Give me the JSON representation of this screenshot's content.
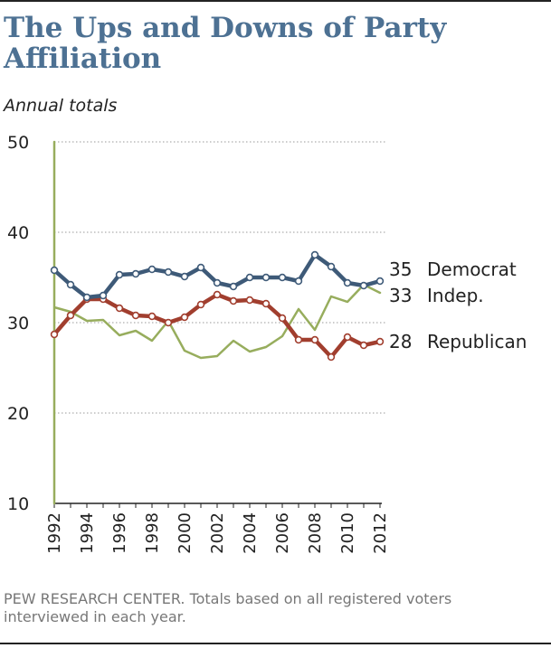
{
  "header": {
    "title": "The Ups and Downs of Party Affiliation",
    "subtitle": "Annual totals"
  },
  "footer": {
    "note": "PEW RESEARCH CENTER. Totals based on all registered voters interviewed in each year."
  },
  "colors": {
    "title": "#4d7193",
    "democrat": "#3e5a78",
    "independent": "#97ad5d",
    "republican": "#a13e2e",
    "grid": "#9a9a9a",
    "footer": "#777777"
  },
  "chart_data": {
    "type": "line",
    "title": "The Ups and Downs of Party Affiliation",
    "subtitle": "Annual totals",
    "xlabel": "",
    "ylabel": "",
    "ylim": [
      10,
      50
    ],
    "yticks": [
      10,
      20,
      30,
      40,
      50
    ],
    "xticks": [
      1992,
      1994,
      1996,
      1998,
      2000,
      2002,
      2004,
      2006,
      2008,
      2010,
      2012
    ],
    "grid": true,
    "x": [
      1992,
      1993,
      1994,
      1995,
      1996,
      1997,
      1998,
      1999,
      2000,
      2001,
      2002,
      2003,
      2004,
      2005,
      2006,
      2007,
      2008,
      2009,
      2010,
      2011,
      2012
    ],
    "series": [
      {
        "name": "Democrat",
        "end_label": "35",
        "color": "#3e5a78",
        "markers": true,
        "values": [
          35.8,
          34.2,
          32.8,
          33.0,
          35.3,
          35.4,
          35.9,
          35.6,
          35.1,
          36.1,
          34.4,
          34.0,
          35.0,
          35.0,
          35.0,
          34.6,
          37.5,
          36.2,
          34.4,
          34.1,
          34.6
        ]
      },
      {
        "name": "Indep.",
        "end_label": "33",
        "color": "#97ad5d",
        "markers": false,
        "values": [
          31.7,
          31.2,
          30.2,
          30.3,
          28.6,
          29.1,
          28.0,
          30.2,
          26.9,
          26.1,
          26.3,
          28.0,
          26.8,
          27.3,
          28.5,
          31.5,
          29.2,
          32.9,
          32.3,
          34.2,
          33.3
        ]
      },
      {
        "name": "Republican",
        "end_label": "28",
        "color": "#a13e2e",
        "markers": true,
        "values": [
          28.7,
          30.8,
          32.6,
          32.6,
          31.6,
          30.8,
          30.7,
          30.0,
          30.6,
          32.0,
          33.1,
          32.4,
          32.5,
          32.1,
          30.5,
          28.1,
          28.1,
          26.2,
          28.4,
          27.5,
          27.9
        ]
      }
    ]
  }
}
